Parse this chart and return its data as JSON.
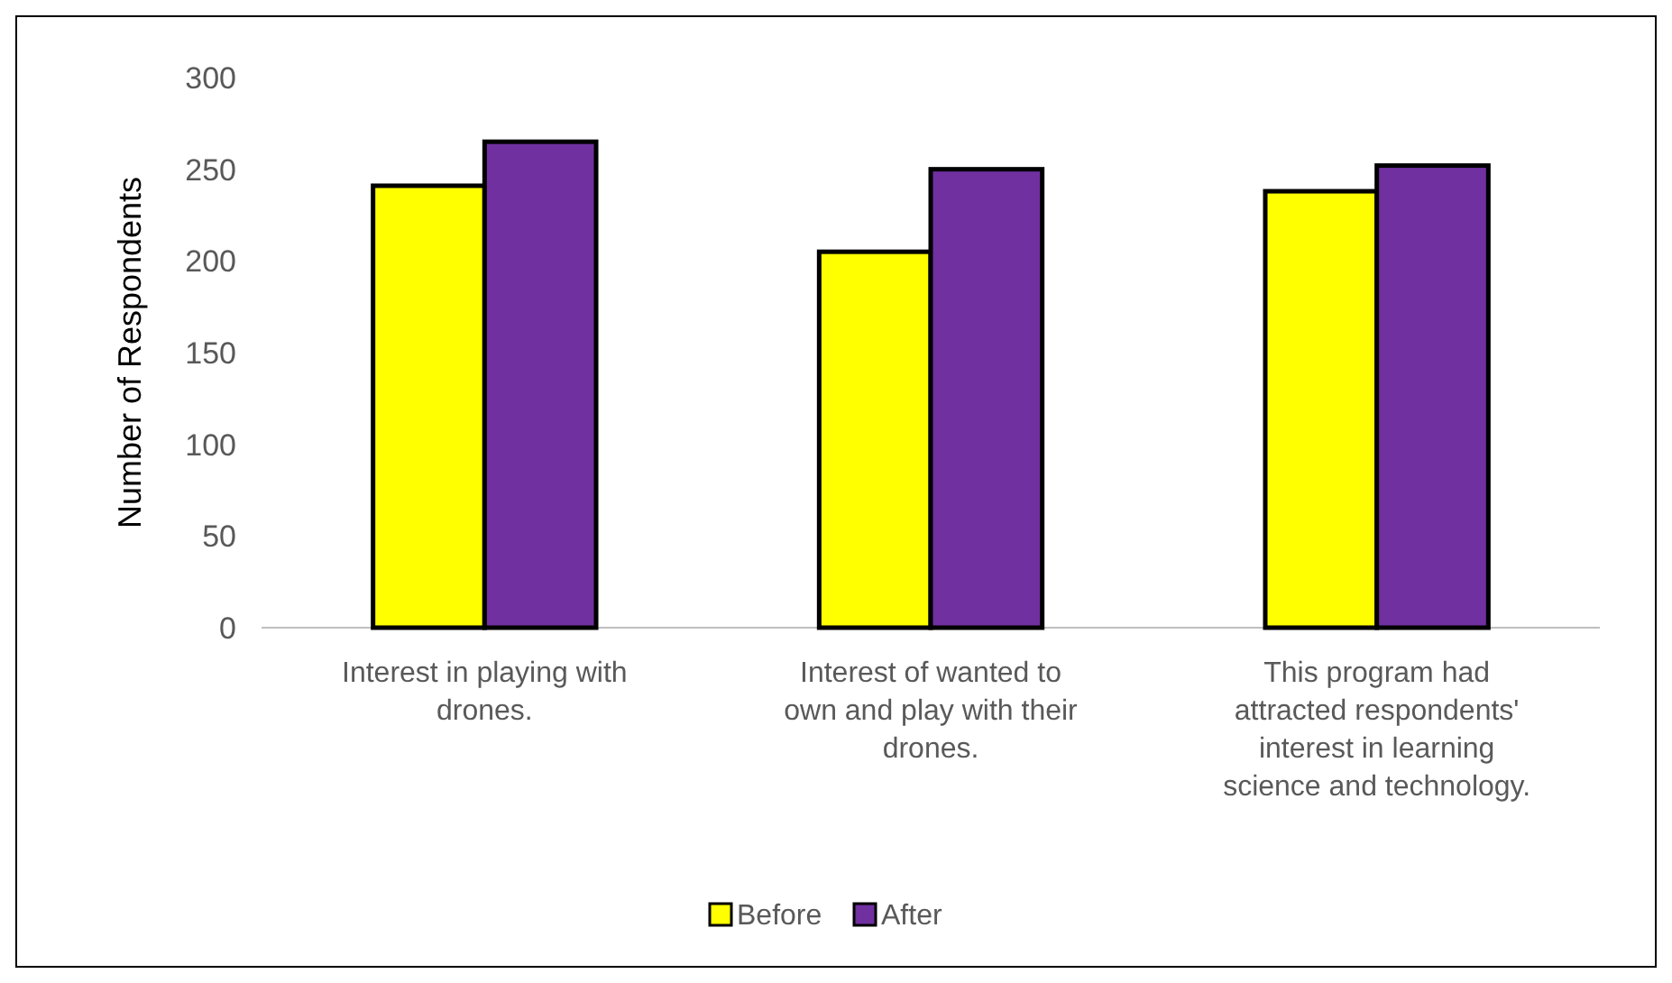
{
  "chart_data": {
    "type": "bar",
    "ylabel": "Number of Respondents",
    "categories": [
      "Interest in playing with drones.",
      "Interest of wanted to own and play with their drones.",
      "This program had attracted respondents' interest in learning science and technology."
    ],
    "series": [
      {
        "name": "Before",
        "color": "#ffff00",
        "values": [
          241,
          205,
          238
        ]
      },
      {
        "name": "After",
        "color": "#7030a0",
        "values": [
          265,
          250,
          252
        ]
      }
    ],
    "ylim": [
      0,
      300
    ],
    "yticks": [
      0,
      50,
      100,
      150,
      200,
      250,
      300
    ],
    "grid": false,
    "legend": "bottom"
  }
}
